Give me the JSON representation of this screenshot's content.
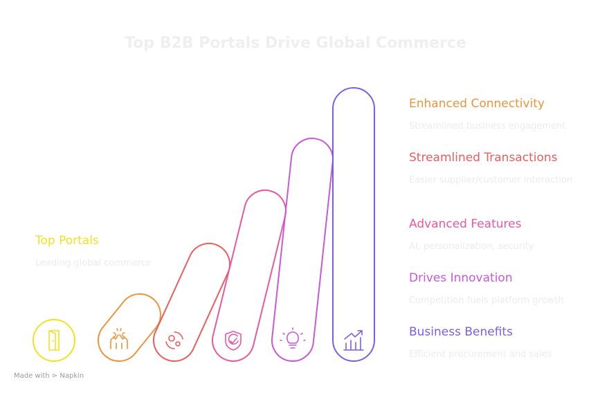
{
  "title": "Top B2B Portals Drive Global Commerce",
  "items": [
    {
      "label": "Top Portals",
      "description": "Leading global commerce",
      "color": "#f2e120"
    },
    {
      "label": "Enhanced Connectivity",
      "description": "Streamlined business engagement",
      "color": "#ef9439"
    },
    {
      "label": "Streamlined Transactions",
      "description": "Easier supplier/customer interaction",
      "color": "#ee5c5c"
    },
    {
      "label": "Advanced Features",
      "description": "AI, personalization, security",
      "color": "#e9589e"
    },
    {
      "label": "Drives Innovation",
      "description": "Competition fuels platform growth",
      "color": "#c857dc"
    },
    {
      "label": "Business Benefits",
      "description": "Efficient procurement and sales",
      "color": "#7d5ce6"
    }
  ],
  "footer": {
    "prefix": "Made with",
    "brand": "Napkin"
  }
}
